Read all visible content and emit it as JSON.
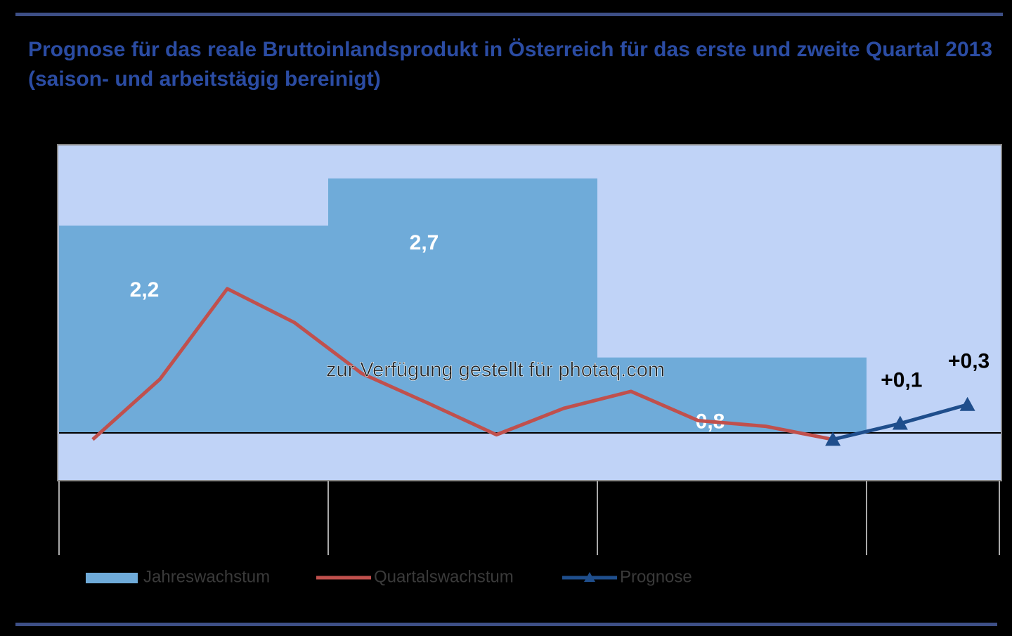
{
  "chart_data": {
    "type": "line",
    "title": "Prognose für das reale Bruttoinlandsprodukt in Österreich für das erste und zweite Quartal 2013 (saison- und arbeitstägig bereinigt)",
    "annotation": "zur Verfügung gestellt für photaq.com",
    "categories": [
      null,
      null,
      null,
      null,
      null,
      null,
      null,
      null,
      null,
      null,
      null,
      null,
      null,
      null
    ],
    "bars": {
      "name": "Jahreswachstum",
      "color": "#6fabd9",
      "values": [
        2.2,
        2.7,
        0.8
      ],
      "value_labels": [
        "2,2",
        "2,7",
        "0,8"
      ]
    },
    "series": [
      {
        "name": "Quartalswachstum",
        "color": "#c0504d",
        "values": [
          -0.07,
          0.57,
          1.53,
          1.17,
          0.63,
          0.31,
          -0.02,
          0.26,
          0.44,
          0.13,
          0.07,
          -0.07,
          null,
          null
        ]
      },
      {
        "name": "Prognose",
        "color": "#1f4e8c",
        "values": [
          null,
          null,
          null,
          null,
          null,
          null,
          null,
          null,
          null,
          null,
          null,
          -0.07,
          0.1,
          0.3
        ],
        "value_labels": [
          null,
          null,
          null,
          null,
          null,
          null,
          null,
          null,
          null,
          null,
          null,
          null,
          "+0,1",
          "+0,3"
        ]
      }
    ],
    "ylim": [
      -0.5,
      3.05
    ]
  }
}
